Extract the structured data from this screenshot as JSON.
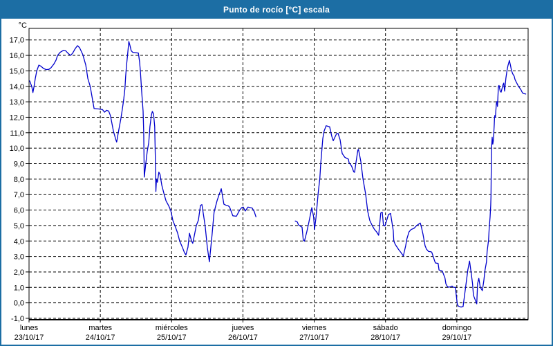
{
  "window": {
    "title": "Punto de rocío [°C] escala",
    "title_bg": "#1c6ea4",
    "border_color": "#1c6ea4"
  },
  "chart_data": {
    "type": "line",
    "title": "Punto de rocío [°C] escala",
    "ylabel": "°C",
    "ylim": [
      -1,
      17
    ],
    "ytick_step": 1,
    "xlim": [
      0,
      168
    ],
    "x_unit": "hours since lunes 23/10/17 00:00",
    "grid": true,
    "grid_style": "dashed-black",
    "x_days": [
      {
        "name": "lunes",
        "date": "23/10/17"
      },
      {
        "name": "martes",
        "date": "24/10/17"
      },
      {
        "name": "miércoles",
        "date": "25/10/17"
      },
      {
        "name": "jueves",
        "date": "26/10/17"
      },
      {
        "name": "viernes",
        "date": "27/10/17"
      },
      {
        "name": "sábado",
        "date": "28/10/17"
      },
      {
        "name": "domingo",
        "date": "29/10/17"
      }
    ],
    "series": [
      {
        "name": "Punto de rocío",
        "color": "#0000cc",
        "segments": [
          [
            [
              0.2,
              14.35
            ],
            [
              0.9,
              14.0
            ],
            [
              1.3,
              13.6
            ],
            [
              1.7,
              14.0
            ],
            [
              2.1,
              14.5
            ],
            [
              2.6,
              15.0
            ],
            [
              3.3,
              15.37
            ],
            [
              4.0,
              15.3
            ],
            [
              4.9,
              15.15
            ],
            [
              5.8,
              15.08
            ],
            [
              6.7,
              15.1
            ],
            [
              7.4,
              15.2
            ],
            [
              8.4,
              15.45
            ],
            [
              9.1,
              15.7
            ],
            [
              9.6,
              16.0
            ],
            [
              10.5,
              16.2
            ],
            [
              11.6,
              16.33
            ],
            [
              12.3,
              16.3
            ],
            [
              13.3,
              16.1
            ],
            [
              14.0,
              16.0
            ],
            [
              14.7,
              16.15
            ],
            [
              15.6,
              16.45
            ],
            [
              16.3,
              16.63
            ],
            [
              17.0,
              16.5
            ],
            [
              18.1,
              16.05
            ],
            [
              19.1,
              15.37
            ],
            [
              19.8,
              14.5
            ],
            [
              20.6,
              14.0
            ],
            [
              21.4,
              13.1
            ],
            [
              21.9,
              12.56
            ],
            [
              23.3,
              12.54
            ],
            [
              24.7,
              12.5
            ],
            [
              25.4,
              12.33
            ],
            [
              26.1,
              12.45
            ],
            [
              26.8,
              12.4
            ],
            [
              27.4,
              12.1
            ],
            [
              28.4,
              11.1
            ],
            [
              29.3,
              10.5
            ],
            [
              29.5,
              10.4
            ],
            [
              30.0,
              10.95
            ],
            [
              30.9,
              11.9
            ],
            [
              31.4,
              12.5
            ],
            [
              31.9,
              13.2
            ],
            [
              32.3,
              13.9
            ],
            [
              32.5,
              14.6
            ],
            [
              32.8,
              15.34
            ],
            [
              33.2,
              16.1
            ],
            [
              33.6,
              16.9
            ],
            [
              34.0,
              16.63
            ],
            [
              34.4,
              16.3
            ],
            [
              34.9,
              16.2
            ],
            [
              35.6,
              16.18
            ],
            [
              36.8,
              16.15
            ],
            [
              37.2,
              15.6
            ],
            [
              37.5,
              14.9
            ],
            [
              37.9,
              13.7
            ],
            [
              38.4,
              12.4
            ],
            [
              38.6,
              11.0
            ],
            [
              38.8,
              8.13
            ],
            [
              39.3,
              9.0
            ],
            [
              39.8,
              9.8
            ],
            [
              40.3,
              10.36
            ],
            [
              40.7,
              11.4
            ],
            [
              41.2,
              12.16
            ],
            [
              41.5,
              12.38
            ],
            [
              41.9,
              12.23
            ],
            [
              42.3,
              11.4
            ],
            [
              42.4,
              10.5
            ],
            [
              42.6,
              8.5
            ],
            [
              42.7,
              7.2
            ],
            [
              42.9,
              8.0
            ],
            [
              43.2,
              7.8
            ],
            [
              43.7,
              8.45
            ],
            [
              44.1,
              8.3
            ],
            [
              44.7,
              7.6
            ],
            [
              45.4,
              7.08
            ],
            [
              46.1,
              6.6
            ],
            [
              47.0,
              6.28
            ],
            [
              47.7,
              5.98
            ],
            [
              48.4,
              5.34
            ],
            [
              49.3,
              4.89
            ],
            [
              50.0,
              4.52
            ],
            [
              50.7,
              4.0
            ],
            [
              51.6,
              3.6
            ],
            [
              52.3,
              3.25
            ],
            [
              52.8,
              3.1
            ],
            [
              53.5,
              3.6
            ],
            [
              54.0,
              4.5
            ],
            [
              54.7,
              4.0
            ],
            [
              55.1,
              3.85
            ],
            [
              55.6,
              4.3
            ],
            [
              56.3,
              5.0
            ],
            [
              57.0,
              5.34
            ],
            [
              57.7,
              6.3
            ],
            [
              58.2,
              6.35
            ],
            [
              58.6,
              5.86
            ],
            [
              59.3,
              4.97
            ],
            [
              60.0,
              3.6
            ],
            [
              60.7,
              2.65
            ],
            [
              61.6,
              4.37
            ],
            [
              62.3,
              5.86
            ],
            [
              63.3,
              6.6
            ],
            [
              64.0,
              7.0
            ],
            [
              64.7,
              7.38
            ],
            [
              65.6,
              6.38
            ],
            [
              66.3,
              6.31
            ],
            [
              67.0,
              6.28
            ],
            [
              67.5,
              6.2
            ],
            [
              68.6,
              5.63
            ],
            [
              69.8,
              5.6
            ],
            [
              70.9,
              6.0
            ],
            [
              71.6,
              6.16
            ],
            [
              72.1,
              6.19
            ],
            [
              72.8,
              5.94
            ],
            [
              73.7,
              6.19
            ],
            [
              74.4,
              6.16
            ],
            [
              75.1,
              6.13
            ],
            [
              75.8,
              5.9
            ],
            [
              76.4,
              5.56
            ]
          ],
          [
            [
              89.6,
              5.29
            ],
            [
              90.3,
              5.23
            ],
            [
              90.7,
              5.04
            ],
            [
              91.9,
              4.89
            ],
            [
              92.3,
              4.07
            ],
            [
              92.7,
              3.99
            ],
            [
              93.5,
              4.59
            ],
            [
              94.2,
              5.2
            ],
            [
              95.2,
              6.16
            ],
            [
              95.8,
              5.56
            ],
            [
              96.1,
              4.74
            ],
            [
              96.6,
              5.5
            ],
            [
              97.3,
              7.05
            ],
            [
              97.9,
              8.06
            ],
            [
              98.2,
              9.0
            ],
            [
              98.9,
              10.63
            ],
            [
              99.3,
              11.1
            ],
            [
              100.0,
              11.45
            ],
            [
              101.2,
              11.38
            ],
            [
              101.9,
              10.78
            ],
            [
              102.4,
              10.48
            ],
            [
              103.5,
              10.93
            ],
            [
              104.0,
              10.96
            ],
            [
              104.7,
              10.55
            ],
            [
              105.4,
              9.66
            ],
            [
              106.3,
              9.41
            ],
            [
              107.5,
              9.29
            ],
            [
              107.7,
              9.07
            ],
            [
              108.6,
              8.84
            ],
            [
              109.3,
              8.47
            ],
            [
              109.6,
              8.44
            ],
            [
              110.0,
              8.99
            ],
            [
              110.7,
              9.88
            ],
            [
              110.9,
              9.92
            ],
            [
              111.7,
              9.14
            ],
            [
              112.4,
              8.02
            ],
            [
              113.3,
              7.05
            ],
            [
              114.0,
              5.93
            ],
            [
              114.7,
              5.33
            ],
            [
              115.6,
              4.97
            ],
            [
              116.3,
              4.74
            ],
            [
              117.0,
              4.59
            ],
            [
              117.7,
              4.37
            ],
            [
              118.4,
              5.81
            ],
            [
              118.9,
              5.86
            ],
            [
              119.3,
              5.04
            ],
            [
              119.8,
              4.97
            ],
            [
              121.0,
              5.71
            ],
            [
              121.7,
              5.78
            ],
            [
              122.6,
              4.67
            ],
            [
              122.8,
              3.99
            ],
            [
              123.3,
              3.77
            ],
            [
              124.4,
              3.45
            ],
            [
              125.2,
              3.25
            ],
            [
              126.0,
              3.03
            ],
            [
              126.8,
              3.7
            ],
            [
              127.2,
              4.15
            ],
            [
              127.9,
              4.59
            ],
            [
              128.6,
              4.74
            ],
            [
              129.6,
              4.82
            ],
            [
              130.5,
              5.0
            ],
            [
              131.7,
              5.16
            ],
            [
              132.1,
              4.89
            ],
            [
              132.6,
              4.44
            ],
            [
              133.3,
              3.7
            ],
            [
              133.8,
              3.47
            ],
            [
              134.5,
              3.32
            ],
            [
              135.4,
              3.3
            ],
            [
              135.6,
              3.25
            ],
            [
              136.5,
              2.73
            ],
            [
              136.8,
              2.58
            ],
            [
              137.7,
              2.55
            ],
            [
              138.0,
              2.13
            ],
            [
              138.4,
              2.09
            ],
            [
              139.1,
              2.06
            ],
            [
              140.0,
              1.61
            ],
            [
              140.3,
              1.24
            ],
            [
              140.7,
              1.09
            ],
            [
              141.2,
              1.01
            ],
            [
              141.9,
              1.04
            ],
            [
              142.4,
              1.09
            ],
            [
              142.8,
              1.01
            ],
            [
              143.5,
              1.0
            ],
            [
              144.2,
              -0.12
            ],
            [
              144.6,
              -0.22
            ],
            [
              145.4,
              -0.27
            ],
            [
              146.1,
              -0.25
            ],
            [
              147.0,
              1.09
            ],
            [
              147.7,
              2.13
            ],
            [
              148.3,
              2.7
            ],
            [
              148.9,
              1.84
            ],
            [
              149.3,
              1.24
            ],
            [
              149.6,
              0.49
            ],
            [
              150.5,
              0.04
            ],
            [
              150.7,
              -0.06
            ],
            [
              151.0,
              1.24
            ],
            [
              151.4,
              1.58
            ],
            [
              151.9,
              1.01
            ],
            [
              152.6,
              0.79
            ],
            [
              153.1,
              1.46
            ],
            [
              153.5,
              2.13
            ],
            [
              154.0,
              2.65
            ],
            [
              154.2,
              3.32
            ],
            [
              154.7,
              4.07
            ],
            [
              154.9,
              4.82
            ],
            [
              155.2,
              5.56
            ],
            [
              155.4,
              6.31
            ],
            [
              155.5,
              6.91
            ],
            [
              155.6,
              8.7
            ],
            [
              155.7,
              10.0
            ],
            [
              155.9,
              10.71
            ],
            [
              156.1,
              10.26
            ],
            [
              156.3,
              10.48
            ],
            [
              156.6,
              11.52
            ],
            [
              156.7,
              11.97
            ],
            [
              156.8,
              12.12
            ],
            [
              157.0,
              12.0
            ],
            [
              157.3,
              12.87
            ],
            [
              157.5,
              13.02
            ],
            [
              157.7,
              12.7
            ],
            [
              158.0,
              13.99
            ],
            [
              158.2,
              14.06
            ],
            [
              158.6,
              13.69
            ],
            [
              158.9,
              13.62
            ],
            [
              159.3,
              13.91
            ],
            [
              159.6,
              14.13
            ],
            [
              159.8,
              14.21
            ],
            [
              160.1,
              13.69
            ],
            [
              160.5,
              14.51
            ],
            [
              160.9,
              15.03
            ],
            [
              161.2,
              15.33
            ],
            [
              161.7,
              15.67
            ],
            [
              162.1,
              15.33
            ],
            [
              162.4,
              15.03
            ],
            [
              162.8,
              14.81
            ],
            [
              163.3,
              14.66
            ],
            [
              163.6,
              14.43
            ],
            [
              164.0,
              14.28
            ],
            [
              164.4,
              14.13
            ],
            [
              164.8,
              13.99
            ],
            [
              165.2,
              13.88
            ],
            [
              165.6,
              13.77
            ],
            [
              165.9,
              13.65
            ],
            [
              166.3,
              13.54
            ],
            [
              167.2,
              13.5
            ]
          ]
        ]
      }
    ]
  }
}
